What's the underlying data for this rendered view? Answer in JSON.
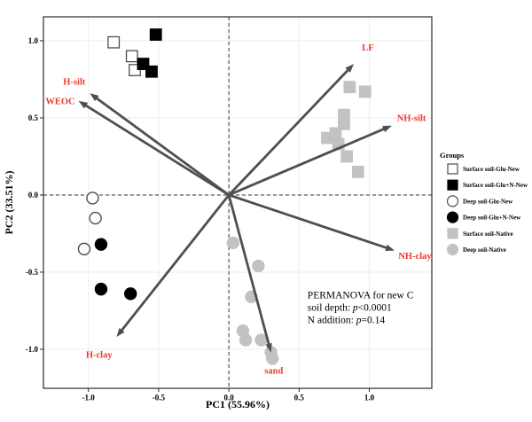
{
  "chart_data": {
    "type": "scatter",
    "title": "",
    "xlabel": "PC1 (55.96%)",
    "ylabel": "PC2 (33.51%)",
    "xlim": [
      -1.32,
      1.445
    ],
    "ylim": [
      -1.253,
      1.155
    ],
    "xticks": [
      -1.0,
      -0.5,
      0.0,
      0.5,
      1.0
    ],
    "xtick_labels": [
      "-1.0",
      "-0.5",
      "0.0",
      "0.5",
      "1.0"
    ],
    "yticks": [
      1.0,
      0.5,
      0.0,
      -0.5,
      -1.0
    ],
    "ytick_labels": [
      "1.0",
      "0.5",
      "0.0",
      "-0.5",
      "-1.0"
    ],
    "grid": true,
    "zero_lines": "dashed",
    "colors": {
      "grid": "#ececec",
      "axis": "#2b2b2b",
      "arrow": "#4f4f4f",
      "loading_label": "#e8392e",
      "gray_marker": "#c2c2c2"
    },
    "series": [
      {
        "name": "Surface soil-Glu-New",
        "marker": "square",
        "fill": "#ffffff",
        "stroke": "#4d4d4d",
        "points": [
          [
            -0.82,
            0.99
          ],
          [
            -0.69,
            0.9
          ],
          [
            -0.67,
            0.81
          ]
        ]
      },
      {
        "name": "Surface soil-Glu+N-New",
        "marker": "square",
        "fill": "#000000",
        "stroke": "#000000",
        "points": [
          [
            -0.52,
            1.04
          ],
          [
            -0.61,
            0.85
          ],
          [
            -0.55,
            0.8
          ]
        ]
      },
      {
        "name": "Deep soil-Glu-New",
        "marker": "circle",
        "fill": "#ffffff",
        "stroke": "#4d4d4d",
        "points": [
          [
            -0.97,
            -0.02
          ],
          [
            -0.95,
            -0.15
          ],
          [
            -1.03,
            -0.35
          ]
        ]
      },
      {
        "name": "Deep soil-Glu+N-New",
        "marker": "circle",
        "fill": "#000000",
        "stroke": "#000000",
        "points": [
          [
            -0.91,
            -0.32
          ],
          [
            -0.91,
            -0.61
          ],
          [
            -0.7,
            -0.64
          ]
        ]
      },
      {
        "name": "Surface soil-Native",
        "marker": "square",
        "fill": "#c2c2c2",
        "stroke": "#c2c2c2",
        "points": [
          [
            0.86,
            0.7
          ],
          [
            0.97,
            0.67
          ],
          [
            0.82,
            0.52
          ],
          [
            0.82,
            0.46
          ],
          [
            0.76,
            0.4
          ],
          [
            0.7,
            0.37
          ],
          [
            0.78,
            0.33
          ],
          [
            0.84,
            0.25
          ],
          [
            0.92,
            0.15
          ]
        ]
      },
      {
        "name": "Deep soil-Native",
        "marker": "circle",
        "fill": "#c2c2c2",
        "stroke": "#c2c2c2",
        "points": [
          [
            0.03,
            -0.31
          ],
          [
            0.21,
            -0.46
          ],
          [
            0.16,
            -0.66
          ],
          [
            0.1,
            -0.88
          ],
          [
            0.12,
            -0.94
          ],
          [
            0.23,
            -0.94
          ],
          [
            0.3,
            -1.02
          ],
          [
            0.31,
            -1.06
          ]
        ]
      }
    ],
    "loadings": [
      {
        "label": "WEOC",
        "x": -1.07,
        "y": 0.61,
        "label_x": -1.2,
        "label_y": 0.61
      },
      {
        "label": "H-silt",
        "x": -0.99,
        "y": 0.66,
        "label_x": -1.1,
        "label_y": 0.735
      },
      {
        "label": "LF",
        "x": 0.89,
        "y": 0.85,
        "label_x": 0.99,
        "label_y": 0.957
      },
      {
        "label": "NH-silt",
        "x": 1.16,
        "y": 0.45,
        "label_x": 1.3,
        "label_y": 0.5
      },
      {
        "label": "NH-clay",
        "x": 1.18,
        "y": -0.36,
        "label_x": 1.325,
        "label_y": -0.393
      },
      {
        "label": "sand",
        "x": 0.3,
        "y": -1.02,
        "label_x": 0.32,
        "label_y": -1.138
      },
      {
        "label": "H-clay",
        "x": -0.8,
        "y": -0.92,
        "label_x": -0.924,
        "label_y": -1.034
      }
    ],
    "annotation": {
      "x": 0.56,
      "y": -0.67,
      "lines": [
        [
          {
            "t": "PERMANOVA for new C",
            "i": false
          }
        ],
        [
          {
            "t": "soil depth: ",
            "i": false
          },
          {
            "t": "p",
            "i": true
          },
          {
            "t": "<0.0001",
            "i": false
          }
        ],
        [
          {
            "t": "N addition: ",
            "i": false
          },
          {
            "t": "p",
            "i": true
          },
          {
            "t": "=0.14",
            "i": false
          }
        ]
      ]
    },
    "legend": {
      "title": "Groups",
      "position": "right",
      "items": [
        {
          "label": "Surface soil-Glu-New",
          "marker": "square",
          "fill": "#ffffff",
          "stroke": "#4d4d4d"
        },
        {
          "label": "Surface soil-Glu+N-New",
          "marker": "square",
          "fill": "#000000",
          "stroke": "#000000"
        },
        {
          "label": "Deep soil-Glu-New",
          "marker": "circle",
          "fill": "#ffffff",
          "stroke": "#4d4d4d"
        },
        {
          "label": "Deep soil-Glu+N-New",
          "marker": "circle",
          "fill": "#000000",
          "stroke": "#000000"
        },
        {
          "label": "Surface soil-Native",
          "marker": "square",
          "fill": "#c2c2c2",
          "stroke": "#c2c2c2"
        },
        {
          "label": "Deep soil-Native",
          "marker": "circle",
          "fill": "#c2c2c2",
          "stroke": "#c2c2c2"
        }
      ]
    }
  }
}
